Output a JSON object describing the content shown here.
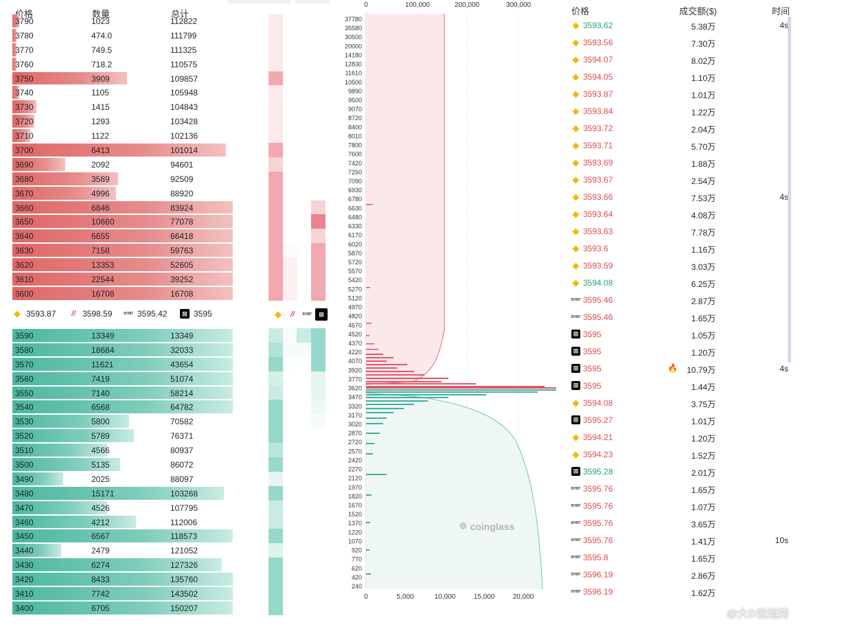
{
  "orderbook": {
    "headers": {
      "price": "价格",
      "qty": "数量",
      "total": "总计"
    },
    "asks": [
      {
        "price": "3790",
        "qty": "1023",
        "total": "112822",
        "fill": 0.03
      },
      {
        "price": "3780",
        "qty": "474.0",
        "total": "111799",
        "fill": 0.02
      },
      {
        "price": "3770",
        "qty": "749.5",
        "total": "111325",
        "fill": 0.02
      },
      {
        "price": "3760",
        "qty": "718.2",
        "total": "110575",
        "fill": 0.02
      },
      {
        "price": "3750",
        "qty": "3909",
        "total": "109857",
        "fill": 0.52
      },
      {
        "price": "3740",
        "qty": "1105",
        "total": "105948",
        "fill": 0.03
      },
      {
        "price": "3730",
        "qty": "1415",
        "total": "104843",
        "fill": 0.11
      },
      {
        "price": "3720",
        "qty": "1293",
        "total": "103428",
        "fill": 0.1
      },
      {
        "price": "3710",
        "qty": "1122",
        "total": "102136",
        "fill": 0.08
      },
      {
        "price": "3700",
        "qty": "6413",
        "total": "101014",
        "fill": 0.97
      },
      {
        "price": "3690",
        "qty": "2092",
        "total": "94601",
        "fill": 0.24
      },
      {
        "price": "3680",
        "qty": "3589",
        "total": "92509",
        "fill": 0.48
      },
      {
        "price": "3670",
        "qty": "4996",
        "total": "88920",
        "fill": 0.47
      },
      {
        "price": "3660",
        "qty": "6846",
        "total": "83924",
        "fill": 1.0
      },
      {
        "price": "3650",
        "qty": "10660",
        "total": "77078",
        "fill": 1.0
      },
      {
        "price": "3640",
        "qty": "6655",
        "total": "66418",
        "fill": 1.0
      },
      {
        "price": "3630",
        "qty": "7158",
        "total": "59763",
        "fill": 1.0
      },
      {
        "price": "3620",
        "qty": "13353",
        "total": "52605",
        "fill": 1.0
      },
      {
        "price": "3610",
        "qty": "22544",
        "total": "39252",
        "fill": 1.0
      },
      {
        "price": "3600",
        "qty": "16708",
        "total": "16708",
        "fill": 1.0
      }
    ],
    "bids": [
      {
        "price": "3590",
        "qty": "13349",
        "total": "13349",
        "fill": 1.0
      },
      {
        "price": "3580",
        "qty": "18684",
        "total": "32033",
        "fill": 1.0
      },
      {
        "price": "3570",
        "qty": "11621",
        "total": "43654",
        "fill": 1.0
      },
      {
        "price": "3560",
        "qty": "7419",
        "total": "51074",
        "fill": 1.0
      },
      {
        "price": "3550",
        "qty": "7140",
        "total": "58214",
        "fill": 1.0
      },
      {
        "price": "3540",
        "qty": "6568",
        "total": "64782",
        "fill": 1.0
      },
      {
        "price": "3530",
        "qty": "5800",
        "total": "70582",
        "fill": 0.53
      },
      {
        "price": "3520",
        "qty": "5789",
        "total": "76371",
        "fill": 0.55
      },
      {
        "price": "3510",
        "qty": "4566",
        "total": "80937",
        "fill": 0.43
      },
      {
        "price": "3500",
        "qty": "5135",
        "total": "86072",
        "fill": 0.49
      },
      {
        "price": "3490",
        "qty": "2025",
        "total": "88097",
        "fill": 0.23
      },
      {
        "price": "3480",
        "qty": "15171",
        "total": "103268",
        "fill": 0.96
      },
      {
        "price": "3470",
        "qty": "4526",
        "total": "107795",
        "fill": 0.43
      },
      {
        "price": "3460",
        "qty": "4212",
        "total": "112006",
        "fill": 0.56
      },
      {
        "price": "3450",
        "qty": "6567",
        "total": "118573",
        "fill": 1.0
      },
      {
        "price": "3440",
        "qty": "2479",
        "total": "121052",
        "fill": 0.22
      },
      {
        "price": "3430",
        "qty": "6274",
        "total": "127326",
        "fill": 0.95
      },
      {
        "price": "3420",
        "qty": "8433",
        "total": "135760",
        "fill": 1.0
      },
      {
        "price": "3410",
        "qty": "7742",
        "total": "143502",
        "fill": 1.0
      },
      {
        "price": "3400",
        "qty": "6705",
        "total": "150207",
        "fill": 1.0
      }
    ],
    "mid_prices": [
      {
        "exchange_icon": "binance-icon",
        "value": "3593.87"
      },
      {
        "exchange_icon": "bitget-icon",
        "value": "3598.59"
      },
      {
        "exchange_icon": "bybit-icon",
        "value": "3595.42"
      },
      {
        "exchange_icon": "okx-icon",
        "value": "3595"
      }
    ],
    "colors": {
      "ask": "#e06666",
      "bid": "#4cb79f"
    }
  },
  "exchange_labels": {
    "bybit": "BYBIT"
  },
  "heatmap": {
    "ask_col1": [
      0.15,
      0.15,
      0.15,
      0.15,
      0.6,
      0.15,
      0.15,
      0.15,
      0.15,
      0.6,
      0.3,
      0.6,
      0.6,
      0.6,
      0.6,
      0.6,
      0.6,
      0.6,
      0.6,
      0.6
    ],
    "ask_col2": [
      0,
      0,
      0,
      0,
      0,
      0,
      0,
      0,
      0,
      0,
      0,
      0,
      0,
      0,
      0,
      0,
      0.03,
      0.1,
      0.1,
      0.1
    ],
    "ask_col3": [
      0,
      0,
      0,
      0,
      0,
      0,
      0,
      0,
      0,
      0,
      0,
      0,
      0,
      0.3,
      0.85,
      0.3,
      0.6,
      0.6,
      0.6,
      0.6
    ],
    "bid_col1": [
      0.3,
      0.45,
      0.6,
      0.25,
      0.3,
      0.6,
      0.6,
      0.6,
      0.4,
      0.6,
      0.15,
      0.6,
      0.3,
      0.3,
      0.6,
      0.2,
      0.6,
      0.6,
      0.6,
      0.6
    ],
    "bid_col2": [
      0.05,
      0.05,
      0.02,
      0,
      0,
      0,
      0,
      0,
      0,
      0,
      0,
      0,
      0,
      0,
      0,
      0,
      0,
      0,
      0,
      0
    ],
    "bid_col3": [
      0.3,
      0.05,
      0,
      0,
      0,
      0,
      0,
      0,
      0,
      0,
      0,
      0,
      0,
      0,
      0,
      0,
      0,
      0,
      0,
      0
    ],
    "bid_col4": [
      0.6,
      0.6,
      0.6,
      0.15,
      0.15,
      0.1,
      0.05,
      0,
      0,
      0,
      0,
      0,
      0,
      0,
      0,
      0,
      0,
      0,
      0,
      0
    ]
  },
  "depth_chart": {
    "top_axis_ticks": [
      "0",
      "100,000",
      "200,000",
      "300,000"
    ],
    "bottom_axis_ticks": [
      "0",
      "5,000",
      "10,000",
      "15,000",
      "20,000"
    ],
    "price_ticks": [
      "37780",
      "35580",
      "30500",
      "20000",
      "14180",
      "12830",
      "11610",
      "10500",
      "9890",
      "9500",
      "9070",
      "8720",
      "8400",
      "8010",
      "7800",
      "7600",
      "7420",
      "7250",
      "7090",
      "6930",
      "6780",
      "6630",
      "6480",
      "6330",
      "6170",
      "6020",
      "5870",
      "5720",
      "5570",
      "5420",
      "5270",
      "5120",
      "4970",
      "4820",
      "4670",
      "4520",
      "4370",
      "4220",
      "4070",
      "3920",
      "3770",
      "3620",
      "3470",
      "3320",
      "3170",
      "3020",
      "2870",
      "2720",
      "2570",
      "2420",
      "2270",
      "2120",
      "1970",
      "1820",
      "1670",
      "1520",
      "1370",
      "1220",
      "1070",
      "920",
      "770",
      "620",
      "420",
      "240"
    ],
    "watermark": "coinglass"
  },
  "trades": {
    "headers": {
      "price": "价格",
      "amount": "成交额($)",
      "time": "时间"
    },
    "rows": [
      {
        "icon": "binance-icon",
        "price": "3593.62",
        "side": "buy",
        "amount": "5.38万",
        "time": "4s"
      },
      {
        "icon": "binance-icon",
        "price": "3593.56",
        "side": "sell",
        "amount": "7.30万",
        "time": ""
      },
      {
        "icon": "binance-icon",
        "price": "3594.07",
        "side": "sell",
        "amount": "8.02万",
        "time": ""
      },
      {
        "icon": "binance-icon",
        "price": "3594.05",
        "side": "sell",
        "amount": "1.10万",
        "time": ""
      },
      {
        "icon": "binance-icon",
        "price": "3593.87",
        "side": "sell",
        "amount": "1.01万",
        "time": ""
      },
      {
        "icon": "binance-icon",
        "price": "3593.84",
        "side": "sell",
        "amount": "1.22万",
        "time": ""
      },
      {
        "icon": "binance-icon",
        "price": "3593.72",
        "side": "sell",
        "amount": "2.04万",
        "time": ""
      },
      {
        "icon": "binance-icon",
        "price": "3593.71",
        "side": "sell",
        "amount": "5.70万",
        "time": ""
      },
      {
        "icon": "binance-icon",
        "price": "3593.69",
        "side": "sell",
        "amount": "1.88万",
        "time": ""
      },
      {
        "icon": "binance-icon",
        "price": "3593.67",
        "side": "sell",
        "amount": "2.54万",
        "time": ""
      },
      {
        "icon": "binance-icon",
        "price": "3593.66",
        "side": "sell",
        "amount": "7.53万",
        "time": "4s"
      },
      {
        "icon": "binance-icon",
        "price": "3593.64",
        "side": "sell",
        "amount": "4.08万",
        "time": ""
      },
      {
        "icon": "binance-icon",
        "price": "3593.63",
        "side": "sell",
        "amount": "7.78万",
        "time": ""
      },
      {
        "icon": "binance-icon",
        "price": "3593.6",
        "side": "sell",
        "amount": "1.16万",
        "time": ""
      },
      {
        "icon": "binance-icon",
        "price": "3593.59",
        "side": "sell",
        "amount": "3.03万",
        "time": ""
      },
      {
        "icon": "binance-icon",
        "price": "3594.08",
        "side": "buy",
        "amount": "6.25万",
        "time": ""
      },
      {
        "icon": "bybit-icon",
        "price": "3595.46",
        "side": "sell",
        "amount": "2.87万",
        "time": ""
      },
      {
        "icon": "bybit-icon",
        "price": "3595.46",
        "side": "sell",
        "amount": "1.65万",
        "time": ""
      },
      {
        "icon": "okx-icon",
        "price": "3595",
        "side": "sell",
        "amount": "1.05万",
        "time": ""
      },
      {
        "icon": "okx-icon",
        "price": "3595",
        "side": "sell",
        "amount": "1.20万",
        "time": ""
      },
      {
        "icon": "okx-icon",
        "price": "3595",
        "side": "sell",
        "amount": "10.79万",
        "time": "4s",
        "hot": true
      },
      {
        "icon": "okx-icon",
        "price": "3595",
        "side": "sell",
        "amount": "1.44万",
        "time": ""
      },
      {
        "icon": "binance-icon",
        "price": "3594.08",
        "side": "sell",
        "amount": "3.75万",
        "time": ""
      },
      {
        "icon": "okx-icon",
        "price": "3595.27",
        "side": "sell",
        "amount": "1.01万",
        "time": ""
      },
      {
        "icon": "binance-icon",
        "price": "3594.21",
        "side": "sell",
        "amount": "1.20万",
        "time": ""
      },
      {
        "icon": "binance-icon",
        "price": "3594.23",
        "side": "sell",
        "amount": "1.52万",
        "time": ""
      },
      {
        "icon": "okx-icon",
        "price": "3595.28",
        "side": "buy",
        "amount": "2.01万",
        "time": ""
      },
      {
        "icon": "bybit-icon",
        "price": "3595.76",
        "side": "sell",
        "amount": "1.65万",
        "time": ""
      },
      {
        "icon": "bybit-icon",
        "price": "3595.76",
        "side": "sell",
        "amount": "1.07万",
        "time": ""
      },
      {
        "icon": "bybit-icon",
        "price": "3595.76",
        "side": "sell",
        "amount": "3.65万",
        "time": ""
      },
      {
        "icon": "bybit-icon",
        "price": "3595.76",
        "side": "sell",
        "amount": "1.41万",
        "time": "10s"
      },
      {
        "icon": "bybit-icon",
        "price": "3595.8",
        "side": "sell",
        "amount": "1.65万",
        "time": ""
      },
      {
        "icon": "bybit-icon",
        "price": "3596.19",
        "side": "sell",
        "amount": "2.86万",
        "time": ""
      },
      {
        "icon": "bybit-icon",
        "price": "3596.19",
        "side": "sell",
        "amount": "1.62万",
        "time": ""
      }
    ],
    "colors": {
      "buy": "#26a17b",
      "sell": "#e04b4b"
    }
  },
  "footer": {
    "watermark": "@大D说趋势"
  }
}
